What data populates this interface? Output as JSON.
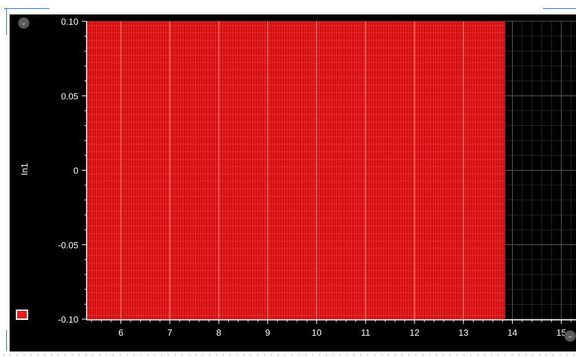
{
  "window": {
    "accent_color": "#2f6fd6"
  },
  "scope": {
    "background_color": "#000000",
    "axis_color": "#ffffff",
    "grid_color": "#5a5a5a",
    "collapse_top_icon": "chevron-down-icon",
    "collapse_bottom_icon": "chevron-down-icon",
    "collapse_glyph": "⌄"
  },
  "legend": {
    "swatch_color": "#e61c1c",
    "series_name": "In1"
  },
  "chart_data": {
    "type": "area",
    "ylabel": "In1",
    "xlim": [
      5.3,
      15.3
    ],
    "ylim": [
      -0.1,
      0.1
    ],
    "x_ticks": [
      6,
      7,
      8,
      9,
      10,
      11,
      12,
      13,
      14,
      15
    ],
    "x_tick_labels": [
      "6",
      "7",
      "8",
      "9",
      "10",
      "11",
      "12",
      "13",
      "14",
      "15"
    ],
    "y_ticks": [
      0.1,
      0.05,
      0,
      -0.05,
      -0.1
    ],
    "y_tick_labels": [
      "0.10",
      "0.05",
      "0",
      "-0.05",
      "-0.10"
    ],
    "grid": true,
    "series": [
      {
        "name": "In1",
        "color": "#e61c1c",
        "x_start": 5.3,
        "x_end": 13.85,
        "y_min": -0.1,
        "y_max": 0.1
      }
    ]
  }
}
